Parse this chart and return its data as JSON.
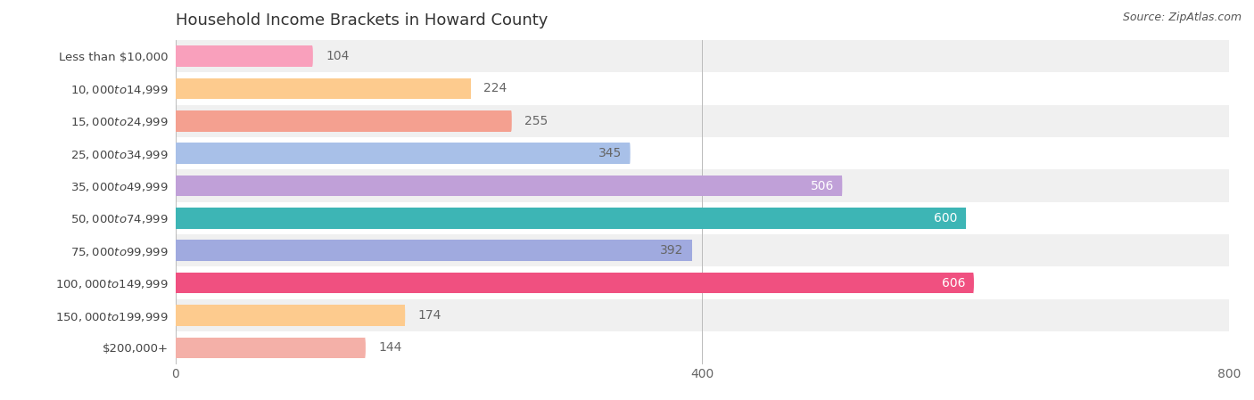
{
  "title": "Household Income Brackets in Howard County",
  "source": "Source: ZipAtlas.com",
  "categories": [
    "Less than $10,000",
    "$10,000 to $14,999",
    "$15,000 to $24,999",
    "$25,000 to $34,999",
    "$35,000 to $49,999",
    "$50,000 to $74,999",
    "$75,000 to $99,999",
    "$100,000 to $149,999",
    "$150,000 to $199,999",
    "$200,000+"
  ],
  "values": [
    104,
    224,
    255,
    345,
    506,
    600,
    392,
    606,
    174,
    144
  ],
  "bar_colors": [
    "#F9A0BC",
    "#FDCB8E",
    "#F4A090",
    "#A8C0E8",
    "#C0A0D8",
    "#3DB5B5",
    "#A0AADF",
    "#F05080",
    "#FDCB8E",
    "#F4B0A8"
  ],
  "label_colors": [
    "#666666",
    "#666666",
    "#666666",
    "#666666",
    "#ffffff",
    "#ffffff",
    "#666666",
    "#ffffff",
    "#666666",
    "#666666"
  ],
  "value_inside_threshold": 300,
  "xlim": [
    0,
    800
  ],
  "xticks": [
    0,
    400,
    800
  ],
  "background_color": "#ffffff",
  "row_bg_even": "#f0f0f0",
  "row_bg_odd": "#ffffff",
  "title_fontsize": 13,
  "bar_height": 0.65,
  "label_fontsize": 10,
  "cat_fontsize": 9.5,
  "source_fontsize": 9
}
